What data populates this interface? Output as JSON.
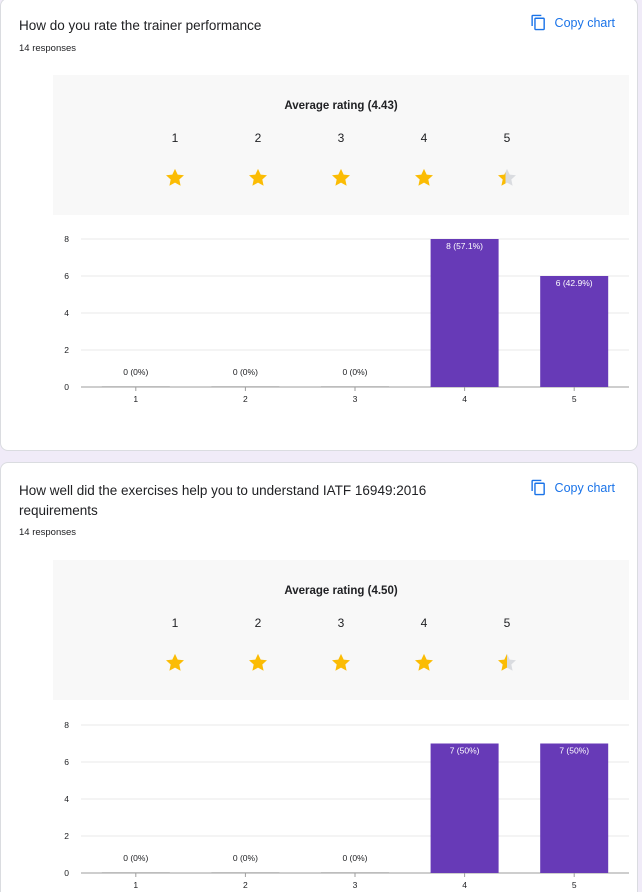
{
  "colors": {
    "bar": "#673ab7",
    "star": "#fbbc04",
    "star_empty": "#dadce0",
    "link": "#1a73e8",
    "grid": "#e8e8e8"
  },
  "icons": {
    "copy": "copy-icon",
    "star": "star-icon"
  },
  "questions": [
    {
      "title": "How do you rate the trainer performance",
      "responses": "14 responses",
      "copy_label": "Copy chart",
      "average_label": "Average rating (4.43)",
      "star_labels": [
        "1",
        "2",
        "3",
        "4",
        "5"
      ],
      "star_fill": [
        1,
        1,
        1,
        1,
        0.43
      ],
      "y_ticks": [
        "0",
        "2",
        "4",
        "6",
        "8"
      ],
      "x_labels": [
        "1",
        "2",
        "3",
        "4",
        "5"
      ],
      "bar_labels": [
        "0 (0%)",
        "0 (0%)",
        "0 (0%)",
        "8 (57.1%)",
        "6 (42.9%)"
      ]
    },
    {
      "title": "How well did the exercises help you to understand IATF 16949:2016 requirements",
      "responses": "14 responses",
      "copy_label": "Copy chart",
      "average_label": "Average rating (4.50)",
      "star_labels": [
        "1",
        "2",
        "3",
        "4",
        "5"
      ],
      "star_fill": [
        1,
        1,
        1,
        1,
        0.5
      ],
      "y_ticks": [
        "0",
        "2",
        "4",
        "6",
        "8"
      ],
      "x_labels": [
        "1",
        "2",
        "3",
        "4",
        "5"
      ],
      "bar_labels": [
        "0 (0%)",
        "0 (0%)",
        "0 (0%)",
        "7 (50%)",
        "7 (50%)"
      ]
    }
  ],
  "chart_data": [
    {
      "type": "bar",
      "title": "How do you rate the trainer performance",
      "categories": [
        "1",
        "2",
        "3",
        "4",
        "5"
      ],
      "values": [
        0,
        0,
        0,
        8,
        6
      ],
      "ylim": [
        0,
        8
      ],
      "grid": true,
      "xlabel": "",
      "ylabel": ""
    },
    {
      "type": "bar",
      "title": "How well did the exercises help you to understand IATF 16949:2016 requirements",
      "categories": [
        "1",
        "2",
        "3",
        "4",
        "5"
      ],
      "values": [
        0,
        0,
        0,
        7,
        7
      ],
      "ylim": [
        0,
        8
      ],
      "grid": true,
      "xlabel": "",
      "ylabel": ""
    }
  ]
}
